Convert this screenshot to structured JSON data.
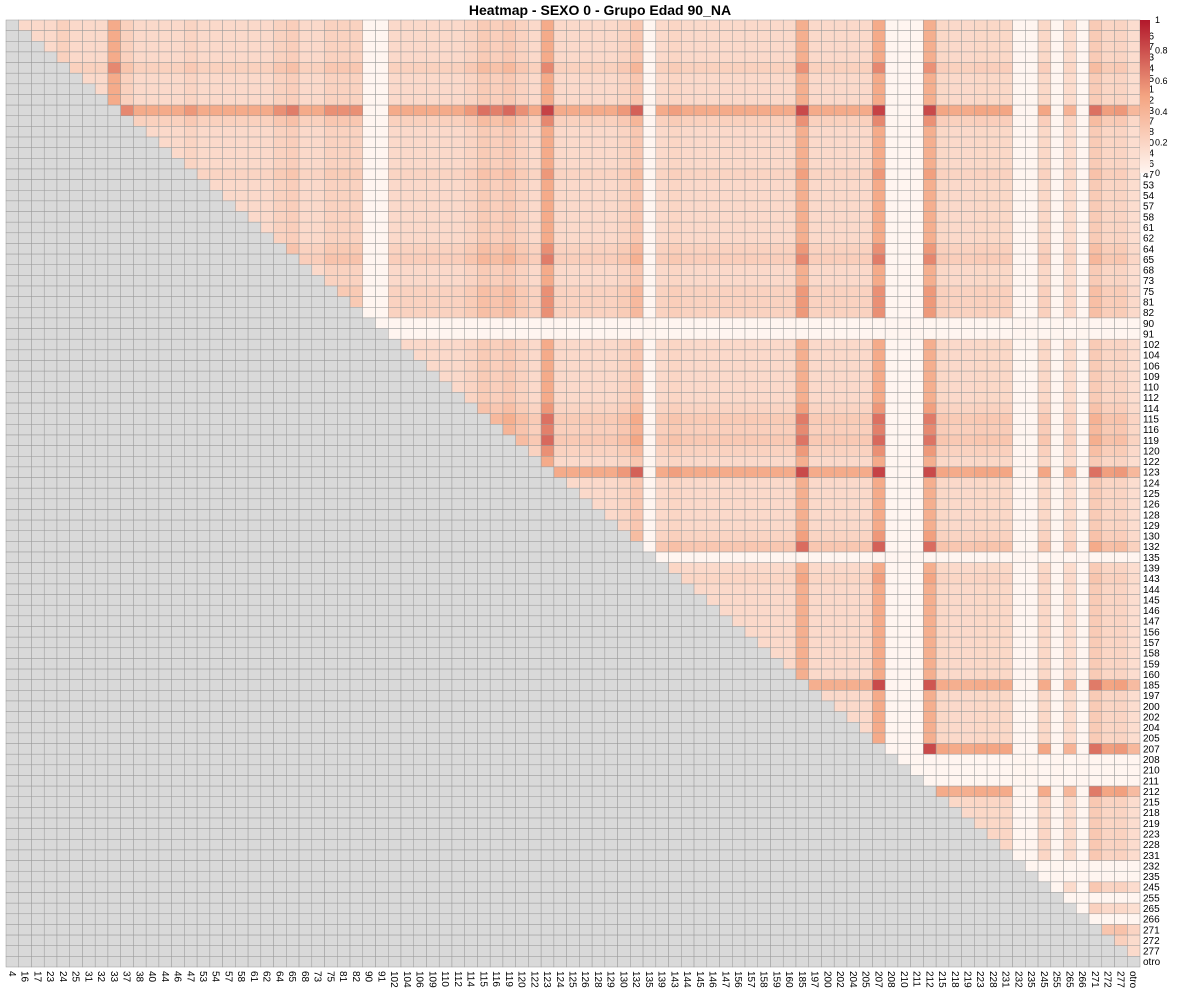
{
  "chart_data": {
    "type": "heatmap",
    "title": "Heatmap - SEXO 0 - Grupo Edad 90_NA",
    "xlabel": "",
    "ylabel": "",
    "labels": [
      "4",
      "16",
      "17",
      "23",
      "24",
      "25",
      "31",
      "32",
      "33",
      "37",
      "38",
      "40",
      "44",
      "46",
      "47",
      "53",
      "54",
      "57",
      "58",
      "61",
      "62",
      "64",
      "65",
      "68",
      "73",
      "75",
      "81",
      "82",
      "90",
      "91",
      "102",
      "104",
      "106",
      "109",
      "110",
      "112",
      "114",
      "115",
      "116",
      "119",
      "120",
      "122",
      "123",
      "124",
      "125",
      "126",
      "128",
      "129",
      "130",
      "132",
      "135",
      "139",
      "143",
      "144",
      "145",
      "146",
      "147",
      "156",
      "157",
      "158",
      "159",
      "160",
      "185",
      "197",
      "200",
      "202",
      "204",
      "205",
      "207",
      "208",
      "210",
      "211",
      "212",
      "215",
      "218",
      "219",
      "223",
      "228",
      "231",
      "232",
      "235",
      "245",
      "255",
      "265",
      "266",
      "271",
      "272",
      "277",
      "otro"
    ],
    "matrix_shape": "upper-triangular correlation matrix; cells below the diagonal are greyed out (NA)",
    "zero_labels": [
      "90",
      "91",
      "135",
      "208",
      "210",
      "211",
      "232",
      "235",
      "255",
      "266"
    ],
    "label_weights": {
      "33": 1.0,
      "123": 1.0,
      "207": 1.0,
      "185": 0.95,
      "212": 0.95,
      "132": 0.8,
      "119": 0.75,
      "115": 0.7,
      "271": 0.7,
      "65": 0.62,
      "116": 0.6,
      "37": 0.55,
      "24": 0.55,
      "120": 0.5,
      "75": 0.5,
      "81": 0.5,
      "82": 0.5,
      "64": 0.5,
      "130": 0.45,
      "277": 0.45,
      "47": 0.45,
      "114": 0.45,
      "143": 0.4,
      "272": 0.4,
      "231": 0.35,
      "228": 0.35,
      "223": 0.35,
      "245": 0.35,
      "215": 0.35,
      "205": 0.3,
      "265": 0.2,
      "otro": 0.15,
      "266": 0.0
    },
    "default_weight": 0.3,
    "color_scale": {
      "min": 0,
      "max": 1,
      "ticks": [
        0,
        0.2,
        0.4,
        0.6,
        0.8,
        1
      ],
      "low_color": "#fff5f0",
      "mid_color": "#f4a582",
      "high_color": "#b2182b"
    },
    "na_color": "#d9d9d9",
    "grid_color": "#999999",
    "legend_position": "right"
  }
}
